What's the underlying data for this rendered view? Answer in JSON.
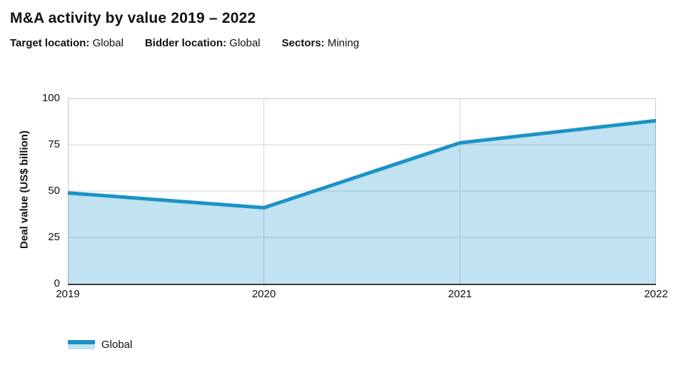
{
  "header": {
    "title": "M&A activity by value 2019 – 2022",
    "filters": [
      {
        "label": "Target location:",
        "value": "Global"
      },
      {
        "label": "Bidder location:",
        "value": "Global"
      },
      {
        "label": "Sectors:",
        "value": "Mining"
      }
    ]
  },
  "chart_data": {
    "type": "area",
    "categories": [
      "2019",
      "2020",
      "2021",
      "2022"
    ],
    "series": [
      {
        "name": "Global",
        "values": [
          49,
          41,
          76,
          88
        ]
      }
    ],
    "title": "M&A activity by value 2019 – 2022",
    "xlabel": "",
    "ylabel": "Deal value (US$ billion)",
    "ylim": [
      0,
      100
    ],
    "yticks": [
      0,
      25,
      50,
      75,
      100
    ],
    "grid": true,
    "legend_position": "bottom-left",
    "colors": {
      "line": "#1b93c6",
      "fill": "#c3e3f0",
      "fill_opacity": 0.27,
      "gridline": "#d2d2d2",
      "border": "#c8c8c8",
      "axis": "#3f3f3f"
    }
  }
}
